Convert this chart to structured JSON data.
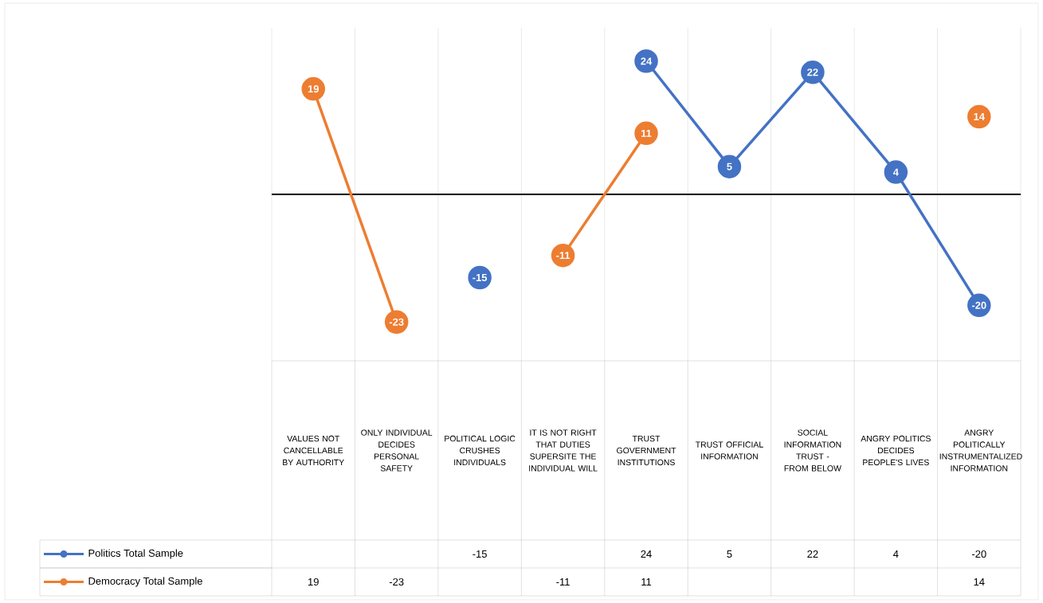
{
  "chart_data": {
    "type": "line",
    "categories": [
      "VALUES NOT CANCELLABLE BY AUTHORITY",
      "ONLY INDIVIDUAL DECIDES PERSONAL SAFETY",
      "POLITICAL LOGIC CRUSHES INDIVIDUALS",
      "IT IS NOT RIGHT THAT DUTIES SUPERSITE THE INDIVIDUAL WILL",
      "TRUST GOVERNMENT INSTITUTIONS",
      "TRUST OFFICIAL INFORMATION",
      "SOCIAL INFORMATION TRUST - FROM BELOW",
      "ANGRY POLITICS DECIDES PEOPLE'S LIVES",
      "ANGRY POLITICALLY INSTRUMENTALIZED INFORMATION"
    ],
    "series": [
      {
        "name": "Politics Total Sample",
        "color": "#4472c4",
        "values": [
          null,
          null,
          -15,
          null,
          24,
          5,
          22,
          4,
          -20
        ]
      },
      {
        "name": "Democracy Total Sample",
        "color": "#ed7d31",
        "values": [
          19,
          -23,
          null,
          -11,
          11,
          null,
          null,
          null,
          14
        ]
      }
    ],
    "annotations": [
      {
        "text": "19",
        "x": "VALUES NOT CANCELLABLE BY AUTHORITY",
        "y": 19
      },
      {
        "text": "-23",
        "x": "ONLY INDIVIDUAL DECIDES PERSONAL SAFETY",
        "y": -23
      },
      {
        "text": "-15",
        "x": "POLITICAL LOGIC CRUSHES INDIVIDUALS",
        "y": -15
      },
      {
        "text": "-11",
        "x": "IT IS NOT RIGHT THAT DUTIES SUPERSITE THE INDIVIDUAL WILL",
        "y": -11
      },
      {
        "text": "24",
        "x": "TRUST GOVERNMENT INSTITUTIONS",
        "y": 24
      },
      {
        "text": "11",
        "x": "TRUST GOVERNMENT INSTITUTIONS",
        "y": 11
      },
      {
        "text": "5",
        "x": "TRUST OFFICIAL INFORMATION",
        "y": 5
      },
      {
        "text": "22",
        "x": "SOCIAL INFORMATION TRUST - FROM BELOW",
        "y": 22
      },
      {
        "text": "4",
        "x": "ANGRY POLITICS DECIDES PEOPLE'S LIVES",
        "y": 4
      },
      {
        "text": "-20",
        "x": "ANGRY POLITICALLY INSTRUMENTALIZED INFORMATION",
        "y": -20
      },
      {
        "text": "14",
        "x": "ANGRY POLITICALLY INSTRUMENTALIZED INFORMATION",
        "y": 14
      }
    ],
    "ylim": [
      -30,
      30
    ],
    "data_labels": true,
    "legend": "bottom",
    "grid": "x",
    "marker": "circle",
    "line_style": "solid"
  }
}
